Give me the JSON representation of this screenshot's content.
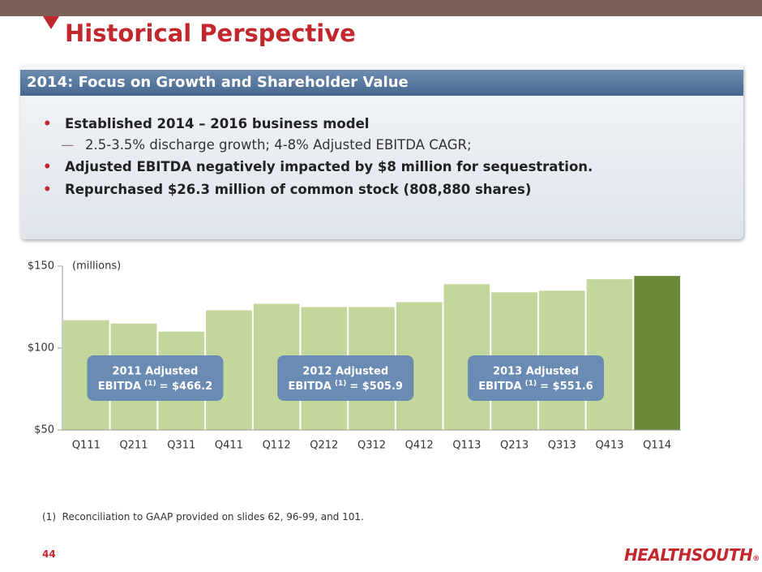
{
  "header": {
    "title": "Historical Perspective"
  },
  "panel": {
    "title": "2014: Focus on Growth and Shareholder Value",
    "bullets": [
      {
        "text": "Established 2014 – 2016 business model",
        "sub": "2.5-3.5% discharge growth; 4-8% Adjusted EBITDA CAGR;"
      },
      {
        "text": "Adjusted EBITDA negatively impacted by $8 million for sequestration."
      },
      {
        "text": "Repurchased $26.3 million of common stock (808,880 shares)"
      }
    ]
  },
  "chart_data": {
    "type": "bar",
    "unit_label": "(millions)",
    "categories": [
      "Q111",
      "Q211",
      "Q311",
      "Q411",
      "Q112",
      "Q212",
      "Q312",
      "Q412",
      "Q113",
      "Q213",
      "Q313",
      "Q413",
      "Q114"
    ],
    "values": [
      117,
      115,
      110,
      123,
      127,
      125,
      125,
      128,
      139,
      134,
      135,
      142,
      144
    ],
    "colors": [
      "#c3d69b",
      "#c3d69b",
      "#c3d69b",
      "#c3d69b",
      "#c3d69b",
      "#c3d69b",
      "#c3d69b",
      "#c3d69b",
      "#c3d69b",
      "#c3d69b",
      "#c3d69b",
      "#c3d69b",
      "#6a8a3a"
    ],
    "ylim": [
      50,
      150
    ],
    "yticks": [
      {
        "value": 50,
        "label": "$50"
      },
      {
        "value": 100,
        "label": "$100"
      },
      {
        "value": 150,
        "label": "$150"
      }
    ],
    "annotations": [
      {
        "line1": "2011 Adjusted",
        "line2": "EBITDA",
        "sup": "(1)",
        "tail": "= $466.2"
      },
      {
        "line1": "2012 Adjusted",
        "line2": "EBITDA",
        "sup": "(1)",
        "tail": "= $505.9"
      },
      {
        "line1": "2013 Adjusted",
        "line2": "EBITDA",
        "sup": "(1)",
        "tail": "= $551.6"
      }
    ]
  },
  "footnote": {
    "marker": "(1)",
    "text": "Reconciliation to GAAP provided on slides 62, 96-99, and 101."
  },
  "page_number": "44",
  "logo": {
    "text": "HEALTHSOUTH",
    "mark": "®"
  }
}
